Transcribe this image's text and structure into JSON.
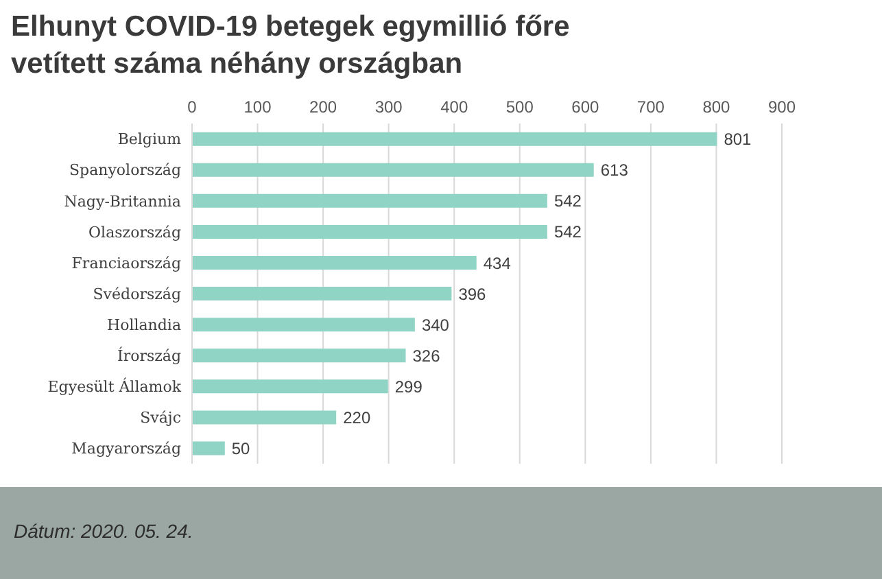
{
  "chart_data": {
    "type": "bar",
    "orientation": "horizontal",
    "title": "Elhunyt COVID-19 betegek egymillió főre vetített száma néhány országban",
    "categories": [
      "Belgium",
      "Spanyolország",
      "Nagy-Britannia",
      "Olaszország",
      "Franciaország",
      "Svédország",
      "Hollandia",
      "Írország",
      "Egyesült Államok",
      "Svájc",
      "Magyarország"
    ],
    "values": [
      801,
      613,
      542,
      542,
      434,
      396,
      340,
      326,
      299,
      220,
      50
    ],
    "color": "#8fd4c4",
    "xlim": [
      0,
      900
    ],
    "xticks": [
      0,
      100,
      200,
      300,
      400,
      500,
      600,
      700,
      800,
      900
    ],
    "grid": "x",
    "data_labels": true,
    "annotations": [
      "Dátum: 2020. 05. 24."
    ]
  }
}
